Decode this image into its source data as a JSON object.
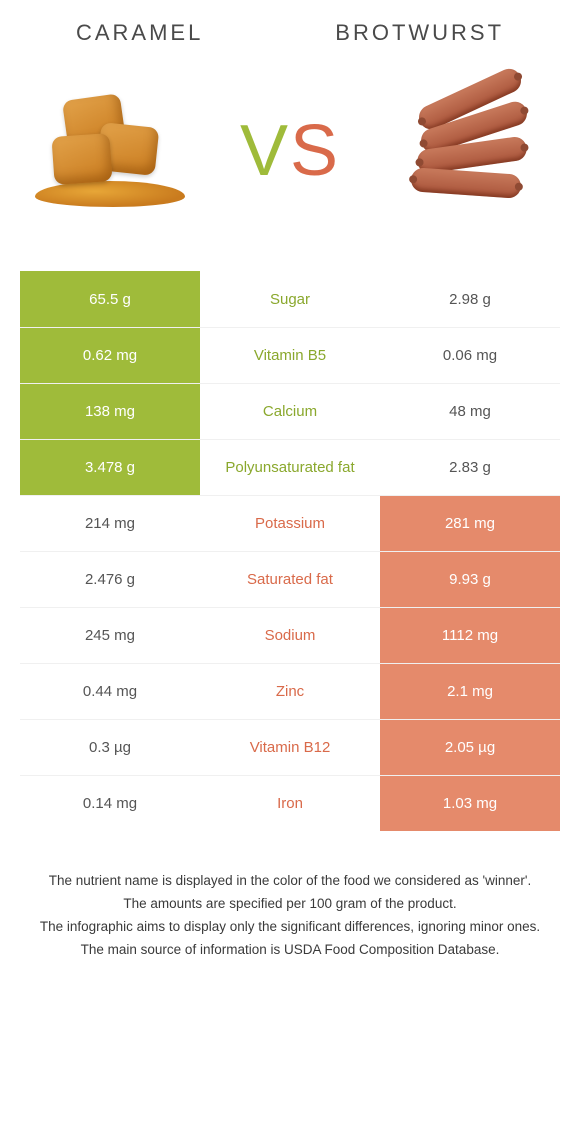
{
  "left_food": "Caramel",
  "right_food": "Brotwurst",
  "vs": {
    "v": "V",
    "s": "S"
  },
  "colors": {
    "green": "#9fbb3a",
    "orange": "#e58a6b",
    "nut_green": "#8aa82d",
    "nut_orange": "#d96a4a",
    "text": "#3a3a3a"
  },
  "rows": [
    {
      "nutrient": "Sugar",
      "left": "65.5 g",
      "right": "2.98 g",
      "winner": "left"
    },
    {
      "nutrient": "Vitamin B5",
      "left": "0.62 mg",
      "right": "0.06 mg",
      "winner": "left"
    },
    {
      "nutrient": "Calcium",
      "left": "138 mg",
      "right": "48 mg",
      "winner": "left"
    },
    {
      "nutrient": "Polyunsaturated fat",
      "left": "3.478 g",
      "right": "2.83 g",
      "winner": "left"
    },
    {
      "nutrient": "Potassium",
      "left": "214 mg",
      "right": "281 mg",
      "winner": "right"
    },
    {
      "nutrient": "Saturated fat",
      "left": "2.476 g",
      "right": "9.93 g",
      "winner": "right"
    },
    {
      "nutrient": "Sodium",
      "left": "245 mg",
      "right": "1112 mg",
      "winner": "right"
    },
    {
      "nutrient": "Zinc",
      "left": "0.44 mg",
      "right": "2.1 mg",
      "winner": "right"
    },
    {
      "nutrient": "Vitamin B12",
      "left": "0.3 µg",
      "right": "2.05 µg",
      "winner": "right"
    },
    {
      "nutrient": "Iron",
      "left": "0.14 mg",
      "right": "1.03 mg",
      "winner": "right"
    }
  ],
  "footnotes": [
    "The nutrient name is displayed in the color of the food we considered as 'winner'.",
    "The amounts are specified per 100 gram of the product.",
    "The infographic aims to display only the significant differences, ignoring minor ones.",
    "The main source of information is USDA Food Composition Database."
  ]
}
